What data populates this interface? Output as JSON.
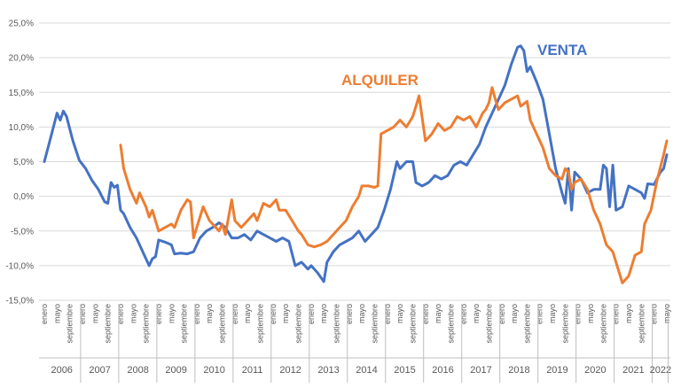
{
  "colors": {
    "venta": "#4472C4",
    "alquiler": "#ED7D31",
    "grid": "#d9d9d9",
    "axis": "#bfbfbf"
  },
  "chart_data": {
    "type": "line",
    "title": "",
    "xlabel": "",
    "ylabel": "",
    "ylim": [
      -15,
      25
    ],
    "y_ticks": [
      "-15,0%",
      "-10,0%",
      "-5,0%",
      "0,0%",
      "5,0%",
      "10,0%",
      "15,0%",
      "20,0%",
      "25,0%"
    ],
    "y_tick_values": [
      -15,
      -10,
      -5,
      0,
      5,
      10,
      15,
      20,
      25
    ],
    "grid": true,
    "x_start": "2006-01",
    "x_end": "2022-05",
    "years": [
      "2006",
      "2007",
      "2008",
      "2009",
      "2010",
      "2011",
      "2012",
      "2013",
      "2014",
      "2015",
      "2016",
      "2017",
      "2018",
      "2019",
      "2020",
      "2021",
      "2022"
    ],
    "month_labels": [
      "enero",
      "mayo",
      "septiembre"
    ],
    "legend": "inline-labels",
    "series": [
      {
        "name": "VENTA",
        "color": "#4472C4",
        "points": [
          [
            "2006-01",
            5.0
          ],
          [
            "2006-03",
            8.5
          ],
          [
            "2006-05",
            12.0
          ],
          [
            "2006-06",
            11.0
          ],
          [
            "2006-07",
            12.3
          ],
          [
            "2006-08",
            11.5
          ],
          [
            "2006-10",
            8.0
          ],
          [
            "2006-12",
            5.2
          ],
          [
            "2007-02",
            4.0
          ],
          [
            "2007-04",
            2.3
          ],
          [
            "2007-06",
            1.0
          ],
          [
            "2007-08",
            -0.8
          ],
          [
            "2007-09",
            -1.0
          ],
          [
            "2007-10",
            2.0
          ],
          [
            "2007-11",
            1.3
          ],
          [
            "2007-12",
            1.6
          ],
          [
            "2008-01",
            -2.0
          ],
          [
            "2008-02",
            -2.5
          ],
          [
            "2008-04",
            -4.5
          ],
          [
            "2008-06",
            -6.0
          ],
          [
            "2008-08",
            -8.0
          ],
          [
            "2008-10",
            -10.0
          ],
          [
            "2008-11",
            -9.0
          ],
          [
            "2008-12",
            -8.7
          ],
          [
            "2009-01",
            -6.3
          ],
          [
            "2009-03",
            -6.6
          ],
          [
            "2009-05",
            -7.0
          ],
          [
            "2009-06",
            -8.3
          ],
          [
            "2009-08",
            -8.2
          ],
          [
            "2009-10",
            -8.3
          ],
          [
            "2009-12",
            -8.0
          ],
          [
            "2010-02",
            -6.0
          ],
          [
            "2010-04",
            -5.0
          ],
          [
            "2010-06",
            -4.5
          ],
          [
            "2010-08",
            -3.8
          ],
          [
            "2010-10",
            -4.5
          ],
          [
            "2010-12",
            -6.0
          ],
          [
            "2011-02",
            -6.0
          ],
          [
            "2011-04",
            -5.5
          ],
          [
            "2011-06",
            -6.3
          ],
          [
            "2011-08",
            -5.0
          ],
          [
            "2011-10",
            -5.5
          ],
          [
            "2011-12",
            -6.0
          ],
          [
            "2012-02",
            -6.5
          ],
          [
            "2012-04",
            -6.0
          ],
          [
            "2012-06",
            -6.5
          ],
          [
            "2012-08",
            -10.0
          ],
          [
            "2012-10",
            -9.5
          ],
          [
            "2012-12",
            -10.5
          ],
          [
            "2013-01",
            -10.0
          ],
          [
            "2013-03",
            -11.0
          ],
          [
            "2013-05",
            -12.3
          ],
          [
            "2013-06",
            -9.5
          ],
          [
            "2013-08",
            -8.0
          ],
          [
            "2013-10",
            -7.0
          ],
          [
            "2013-12",
            -6.5
          ],
          [
            "2014-02",
            -6.0
          ],
          [
            "2014-04",
            -5.0
          ],
          [
            "2014-06",
            -6.5
          ],
          [
            "2014-08",
            -5.5
          ],
          [
            "2014-10",
            -4.5
          ],
          [
            "2014-12",
            -2.0
          ],
          [
            "2015-02",
            1.0
          ],
          [
            "2015-04",
            5.0
          ],
          [
            "2015-05",
            4.0
          ],
          [
            "2015-07",
            5.0
          ],
          [
            "2015-09",
            5.0
          ],
          [
            "2015-10",
            2.0
          ],
          [
            "2015-12",
            1.5
          ],
          [
            "2016-02",
            2.0
          ],
          [
            "2016-04",
            3.0
          ],
          [
            "2016-06",
            2.5
          ],
          [
            "2016-08",
            3.0
          ],
          [
            "2016-10",
            4.5
          ],
          [
            "2016-12",
            5.0
          ],
          [
            "2017-02",
            4.5
          ],
          [
            "2017-04",
            6.0
          ],
          [
            "2017-06",
            7.5
          ],
          [
            "2017-08",
            10.0
          ],
          [
            "2017-10",
            12.0
          ],
          [
            "2017-12",
            14.0
          ],
          [
            "2018-02",
            16.0
          ],
          [
            "2018-04",
            19.0
          ],
          [
            "2018-06",
            21.5
          ],
          [
            "2018-07",
            21.7
          ],
          [
            "2018-08",
            21.0
          ],
          [
            "2018-09",
            18.0
          ],
          [
            "2018-10",
            18.7
          ],
          [
            "2018-12",
            16.5
          ],
          [
            "2019-02",
            14.0
          ],
          [
            "2019-04",
            9.0
          ],
          [
            "2019-06",
            4.0
          ],
          [
            "2019-08",
            0.5
          ],
          [
            "2019-09",
            -1.0
          ],
          [
            "2019-10",
            4.0
          ],
          [
            "2019-11",
            -2.0
          ],
          [
            "2019-12",
            3.5
          ],
          [
            "2020-02",
            2.5
          ],
          [
            "2020-04",
            0.5
          ],
          [
            "2020-06",
            1.0
          ],
          [
            "2020-08",
            1.0
          ],
          [
            "2020-09",
            4.5
          ],
          [
            "2020-10",
            4.0
          ],
          [
            "2020-11",
            -1.5
          ],
          [
            "2020-12",
            4.5
          ],
          [
            "2021-01",
            -2.0
          ],
          [
            "2021-03",
            -1.5
          ],
          [
            "2021-05",
            1.5
          ],
          [
            "2021-07",
            1.0
          ],
          [
            "2021-09",
            0.5
          ],
          [
            "2021-10",
            -0.3
          ],
          [
            "2021-11",
            1.8
          ],
          [
            "2022-01",
            1.7
          ],
          [
            "2022-03",
            3.5
          ],
          [
            "2022-04",
            4.0
          ],
          [
            "2022-05",
            6.0
          ]
        ]
      },
      {
        "name": "ALQUILER",
        "color": "#ED7D31",
        "points": [
          [
            "2008-01",
            7.4
          ],
          [
            "2008-02",
            4.0
          ],
          [
            "2008-04",
            1.0
          ],
          [
            "2008-06",
            -1.0
          ],
          [
            "2008-07",
            0.5
          ],
          [
            "2008-09",
            -1.5
          ],
          [
            "2008-10",
            -3.0
          ],
          [
            "2008-11",
            -2.0
          ],
          [
            "2009-01",
            -5.0
          ],
          [
            "2009-03",
            -4.5
          ],
          [
            "2009-05",
            -4.0
          ],
          [
            "2009-06",
            -4.5
          ],
          [
            "2009-08",
            -2.0
          ],
          [
            "2009-10",
            -0.5
          ],
          [
            "2009-11",
            -0.8
          ],
          [
            "2009-12",
            -6.0
          ],
          [
            "2010-02",
            -3.0
          ],
          [
            "2010-03",
            -1.5
          ],
          [
            "2010-05",
            -3.5
          ],
          [
            "2010-07",
            -4.5
          ],
          [
            "2010-08",
            -5.0
          ],
          [
            "2010-09",
            -4.0
          ],
          [
            "2010-10",
            -5.5
          ],
          [
            "2010-12",
            -0.5
          ],
          [
            "2011-01",
            -3.5
          ],
          [
            "2011-03",
            -4.5
          ],
          [
            "2011-05",
            -3.5
          ],
          [
            "2011-07",
            -2.5
          ],
          [
            "2011-08",
            -3.5
          ],
          [
            "2011-10",
            -1.0
          ],
          [
            "2011-12",
            -1.5
          ],
          [
            "2012-02",
            -0.5
          ],
          [
            "2012-03",
            -2.0
          ],
          [
            "2012-05",
            -2.0
          ],
          [
            "2012-07",
            -3.5
          ],
          [
            "2012-09",
            -5.0
          ],
          [
            "2012-10",
            -5.5
          ],
          [
            "2012-12",
            -7.0
          ],
          [
            "2013-02",
            -7.3
          ],
          [
            "2013-04",
            -7.0
          ],
          [
            "2013-06",
            -6.5
          ],
          [
            "2013-08",
            -5.5
          ],
          [
            "2013-10",
            -4.5
          ],
          [
            "2013-12",
            -3.5
          ],
          [
            "2014-02",
            -1.5
          ],
          [
            "2014-04",
            0.0
          ],
          [
            "2014-05",
            1.5
          ],
          [
            "2014-07",
            1.5
          ],
          [
            "2014-09",
            1.3
          ],
          [
            "2014-10",
            1.5
          ],
          [
            "2014-11",
            9.0
          ],
          [
            "2015-01",
            9.5
          ],
          [
            "2015-03",
            10.0
          ],
          [
            "2015-05",
            11.0
          ],
          [
            "2015-07",
            10.0
          ],
          [
            "2015-09",
            11.5
          ],
          [
            "2015-10",
            13.0
          ],
          [
            "2015-11",
            14.5
          ],
          [
            "2016-01",
            8.0
          ],
          [
            "2016-03",
            9.0
          ],
          [
            "2016-05",
            10.5
          ],
          [
            "2016-07",
            9.5
          ],
          [
            "2016-09",
            10.0
          ],
          [
            "2016-11",
            11.5
          ],
          [
            "2017-01",
            11.0
          ],
          [
            "2017-03",
            11.5
          ],
          [
            "2017-05",
            10.0
          ],
          [
            "2017-07",
            12.0
          ],
          [
            "2017-08",
            12.5
          ],
          [
            "2017-09",
            13.5
          ],
          [
            "2017-10",
            15.7
          ],
          [
            "2017-11",
            14.0
          ],
          [
            "2017-12",
            12.5
          ],
          [
            "2018-02",
            13.5
          ],
          [
            "2018-04",
            14.0
          ],
          [
            "2018-06",
            14.5
          ],
          [
            "2018-07",
            13.0
          ],
          [
            "2018-09",
            13.7
          ],
          [
            "2018-10",
            11.0
          ],
          [
            "2018-12",
            9.0
          ],
          [
            "2019-02",
            7.0
          ],
          [
            "2019-04",
            4.0
          ],
          [
            "2019-06",
            3.0
          ],
          [
            "2019-08",
            2.5
          ],
          [
            "2019-09",
            4.0
          ],
          [
            "2019-10",
            3.5
          ],
          [
            "2019-11",
            1.0
          ],
          [
            "2019-12",
            2.0
          ],
          [
            "2020-02",
            2.5
          ],
          [
            "2020-04",
            1.0
          ],
          [
            "2020-06",
            -2.0
          ],
          [
            "2020-08",
            -4.0
          ],
          [
            "2020-10",
            -7.0
          ],
          [
            "2020-12",
            -8.0
          ],
          [
            "2021-02",
            -11.0
          ],
          [
            "2021-03",
            -12.5
          ],
          [
            "2021-05",
            -11.5
          ],
          [
            "2021-07",
            -8.5
          ],
          [
            "2021-09",
            -8.0
          ],
          [
            "2021-10",
            -4.0
          ],
          [
            "2021-12",
            -2.0
          ],
          [
            "2022-02",
            2.5
          ],
          [
            "2022-04",
            6.0
          ],
          [
            "2022-05",
            8.0
          ]
        ]
      }
    ]
  },
  "labels": {
    "venta": "VENTA",
    "alquiler": "ALQUILER"
  }
}
